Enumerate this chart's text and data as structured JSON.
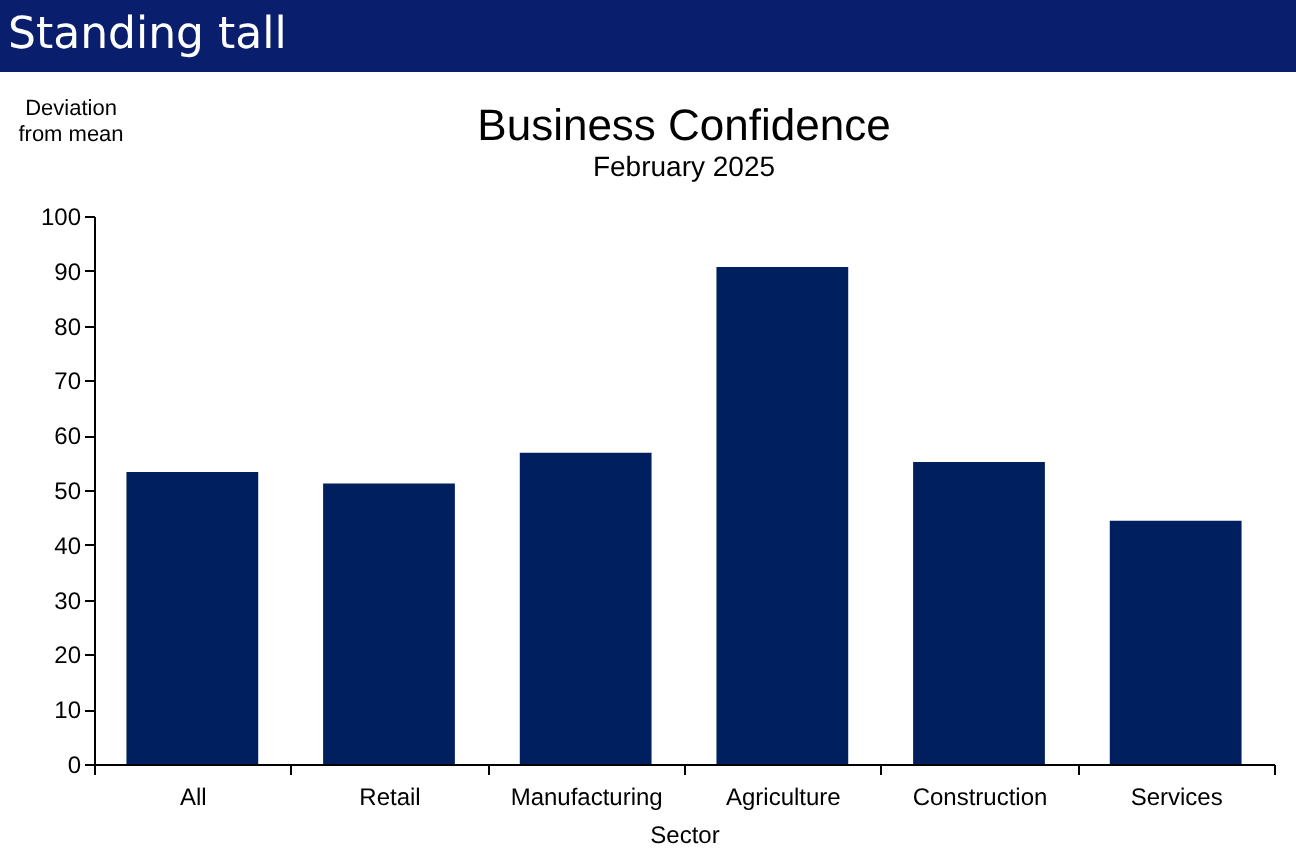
{
  "chart_data": {
    "type": "bar",
    "title": "Business Confidence",
    "subtitle": "February 2025",
    "xlabel": "Sector",
    "ylabel": "Deviation\nfrom mean",
    "annotations": [
      "Standing tall"
    ],
    "categories": [
      "All",
      "Retail",
      "Manufacturing",
      "Agriculture",
      "Construction",
      "Services"
    ],
    "values": [
      53.3,
      51.2,
      56.8,
      90.7,
      55.1,
      44.4
    ],
    "color": "#001f5f",
    "ylim": [
      0,
      100
    ],
    "yticks": [
      0,
      10,
      20,
      30,
      40,
      50,
      60,
      70,
      80,
      90,
      100
    ],
    "grid": false
  }
}
